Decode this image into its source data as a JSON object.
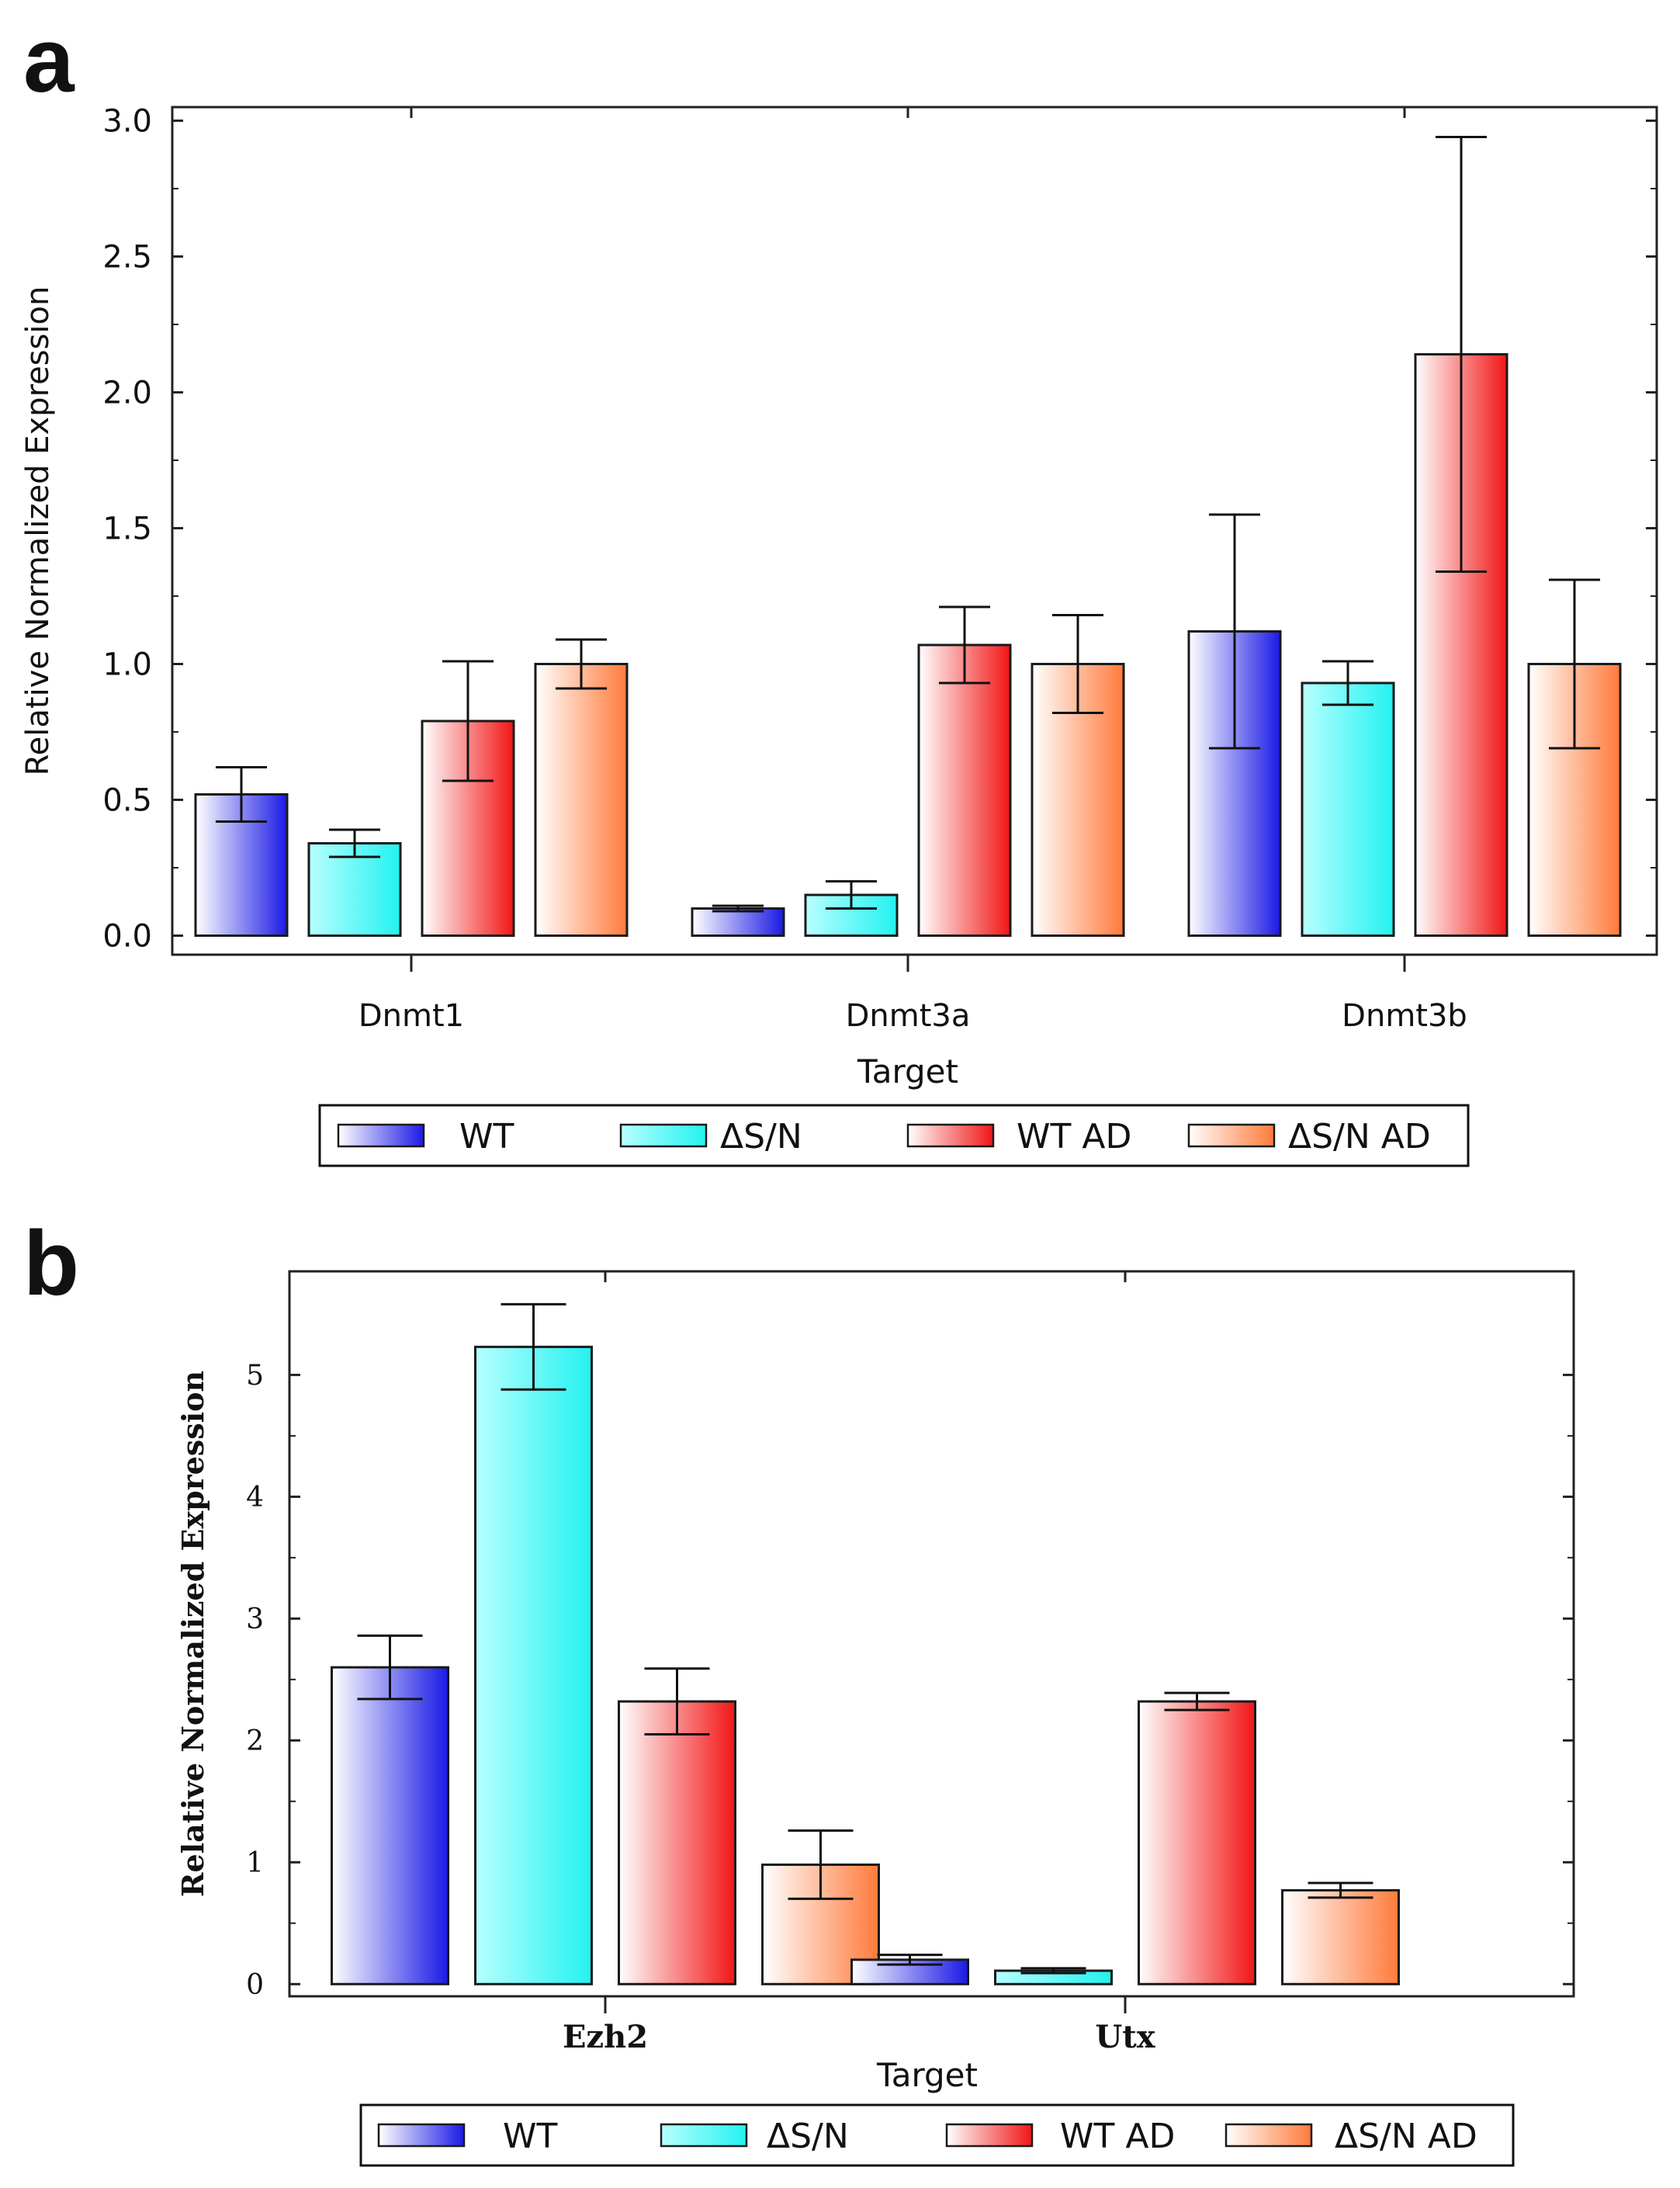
{
  "panels": [
    {
      "letter": "a"
    },
    {
      "letter": "b"
    }
  ],
  "legend_colors": {
    "WT": [
      "#ffffff",
      "#1a1ae6"
    ],
    "ΔS/N": [
      "#b8ffff",
      "#22f2f0"
    ],
    "WT AD": [
      "#ffffff",
      "#f21515"
    ],
    "ΔS/N AD": [
      "#ffffff",
      "#ff7a3a"
    ]
  },
  "chart_data": [
    {
      "type": "bar",
      "panel": "a",
      "categories": [
        "Dnmt1",
        "Dnmt3a",
        "Dnmt3b"
      ],
      "series": [
        {
          "name": "WT",
          "values": [
            0.52,
            0.1,
            1.12
          ],
          "error": [
            0.1,
            0.01,
            0.43
          ]
        },
        {
          "name": "ΔS/N",
          "values": [
            0.34,
            0.15,
            0.93
          ],
          "error": [
            0.05,
            0.05,
            0.08
          ]
        },
        {
          "name": "WT AD",
          "values": [
            0.79,
            1.07,
            2.14
          ],
          "error": [
            0.22,
            0.14,
            0.8
          ]
        },
        {
          "name": "ΔS/N AD",
          "values": [
            1.0,
            1.0,
            1.0
          ],
          "error": [
            0.09,
            0.18,
            0.31
          ]
        }
      ],
      "xlabel": "Target",
      "ylabel": "Relative Normalized Expression",
      "ylim": [
        -0.07,
        3.05
      ],
      "yticks": [
        "0.0",
        "0.5",
        "1.0",
        "1.5",
        "2.0",
        "2.5",
        "3.0"
      ],
      "legend": [
        "WT",
        "ΔS/N",
        "WT AD",
        "ΔS/N AD"
      ],
      "legend_position": "bottom",
      "grid": false
    },
    {
      "type": "bar",
      "panel": "b",
      "categories": [
        "Ezh2",
        "Utx"
      ],
      "series": [
        {
          "name": "WT",
          "values": [
            2.6,
            0.2
          ],
          "error": [
            0.26,
            0.04
          ]
        },
        {
          "name": "ΔS/N",
          "values": [
            5.23,
            0.11
          ],
          "error": [
            0.35,
            0.02
          ]
        },
        {
          "name": "WT AD",
          "values": [
            2.32,
            2.32
          ],
          "error": [
            0.27,
            0.07
          ]
        },
        {
          "name": "ΔS/N AD",
          "values": [
            0.98,
            0.77
          ],
          "error": [
            0.28,
            0.06
          ]
        }
      ],
      "xlabel": "Target",
      "ylabel": "Relative Normalized Expression",
      "ylim": [
        -0.1,
        5.85
      ],
      "yticks": [
        "0",
        "1",
        "2",
        "3",
        "4",
        "5"
      ],
      "legend": [
        "WT",
        "ΔS/N",
        "WT AD",
        "ΔS/N AD"
      ],
      "legend_position": "bottom",
      "grid": false
    }
  ]
}
